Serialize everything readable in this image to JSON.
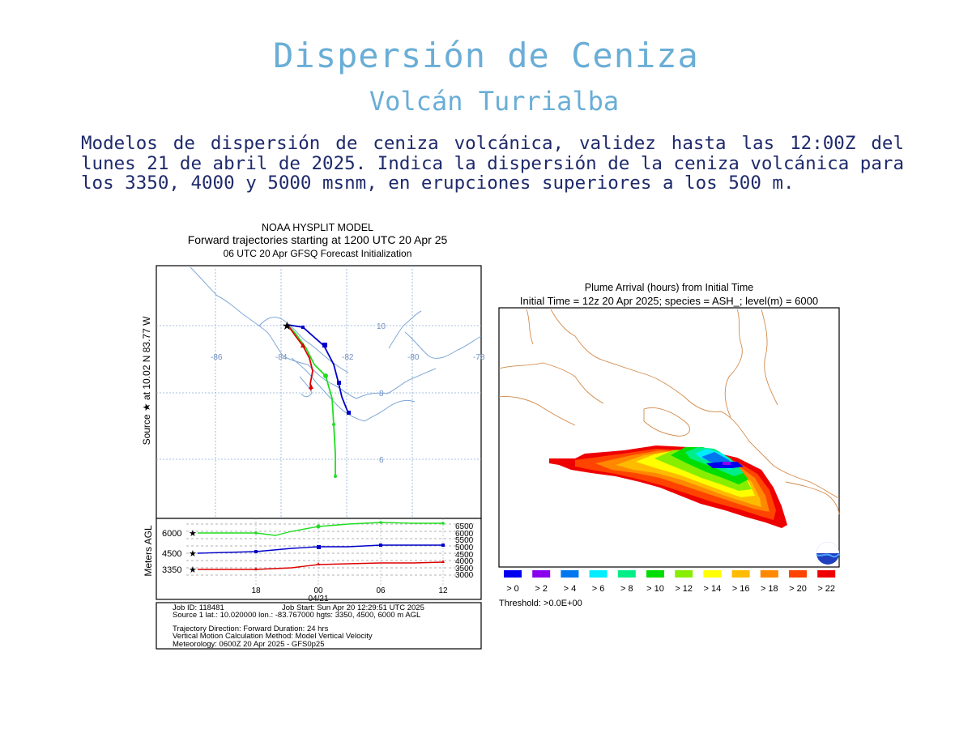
{
  "header": {
    "title": "Dispersión de Ceniza",
    "subtitle": "Volcán Turrialba",
    "description": "Modelos de dispersión de ceniza volcánica, validez hasta las 12:00Z del lunes 21 de abril de 2025. Indica la dispersión de la ceniza volcánica para los 3350, 4000 y 5000 msnm, en erupciones superiores a los 500 m."
  },
  "hysplit": {
    "title_line1": "NOAA HYSPLIT MODEL",
    "title_line2": "Forward trajectories starting at 1200 UTC 20 Apr 25",
    "title_line3": "06 UTC 20 Apr    GFSQ  Forecast Initialization",
    "side_label": "Source ★ at    10.02 N   83.77 W",
    "lon_labels": [
      "-86",
      "-84",
      "-82",
      "-80",
      "-78"
    ],
    "lat_labels": [
      "10",
      "8",
      "6"
    ],
    "height_axis_label": "Meters AGL",
    "height_levels": [
      "6000",
      "4500",
      "3350"
    ],
    "height_ticks": [
      "6500",
      "6000",
      "5500",
      "5000",
      "4500",
      "4000",
      "3500",
      "3000"
    ],
    "time_ticks": [
      "18",
      "00",
      "06",
      "12"
    ],
    "date_label": "04/21",
    "info_job": "Job ID: 118481",
    "info_start": "Job Start: Sun Apr 20 12:29:51 UTC 2025",
    "info_source": "Source 1 lat.: 10.020000  lon.: -83.767000  hgts: 3350, 4500, 6000 m AGL",
    "info_direction": "Trajectory Direction: Forward      Duration: 24 hrs",
    "info_vertical": "Vertical Motion Calculation Method:       Model Vertical Velocity",
    "info_meteo": "Meteorology: 0600Z 20 Apr 2025 - GFS0p25",
    "colors": {
      "t6000": "#22dd22",
      "t4500": "#0000cc",
      "t3350": "#dd0000"
    }
  },
  "plume": {
    "title_line1": "Plume Arrival (hours) from Initial Time",
    "title_line2": "Initial Time = 12z 20 Apr 2025;  species = ASH_;  level(m) =  6000",
    "threshold": "Threshold: >0.0E+00",
    "legend": [
      {
        "label": "> 0",
        "color": "#0000ee"
      },
      {
        "label": "> 2",
        "color": "#8800ee"
      },
      {
        "label": "> 4",
        "color": "#0077ee"
      },
      {
        "label": "> 6",
        "color": "#00eeff"
      },
      {
        "label": "> 8",
        "color": "#00ee88"
      },
      {
        "label": "> 10",
        "color": "#00dd00"
      },
      {
        "label": "> 12",
        "color": "#88ee00"
      },
      {
        "label": "> 14",
        "color": "#ffff00"
      },
      {
        "label": "> 16",
        "color": "#ffbb00"
      },
      {
        "label": "> 18",
        "color": "#ff8800"
      },
      {
        "label": "> 20",
        "color": "#ff4400"
      },
      {
        "label": "> 22",
        "color": "#ee0000"
      }
    ]
  }
}
